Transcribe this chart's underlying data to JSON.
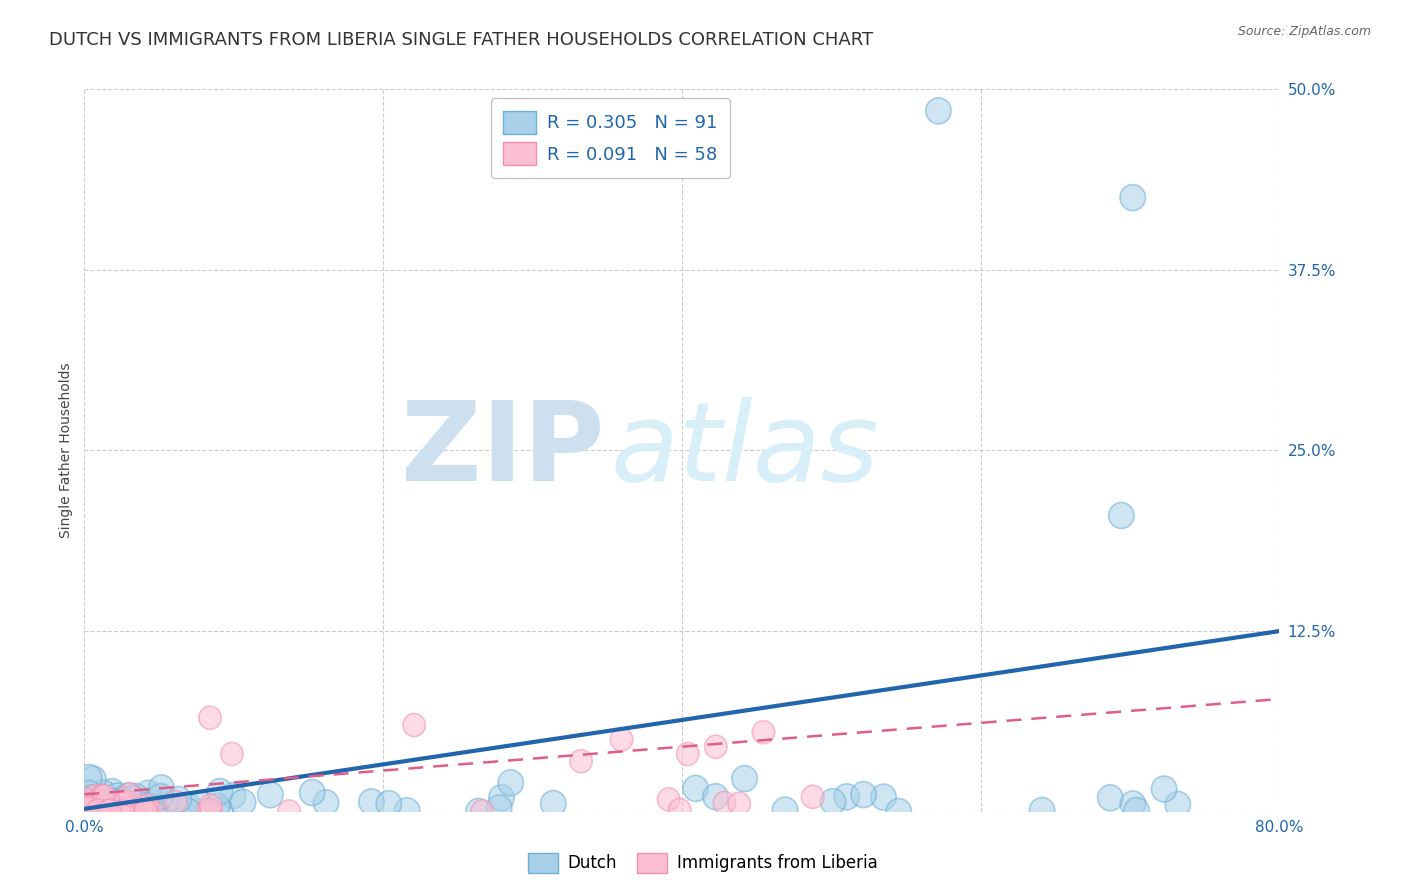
{
  "title": "DUTCH VS IMMIGRANTS FROM LIBERIA SINGLE FATHER HOUSEHOLDS CORRELATION CHART",
  "source": "Source: ZipAtlas.com",
  "ylabel": "Single Father Households",
  "xlim": [
    0.0,
    0.8
  ],
  "ylim": [
    0.0,
    0.5
  ],
  "xticks": [
    0.0,
    0.2,
    0.4,
    0.6,
    0.8
  ],
  "yticks": [
    0.0,
    0.125,
    0.25,
    0.375,
    0.5
  ],
  "ytick_labels": [
    "",
    "12.5%",
    "25.0%",
    "37.5%",
    "50.0%"
  ],
  "xtick_labels": [
    "0.0%",
    "",
    "",
    "",
    "80.0%"
  ],
  "dutch_R": 0.305,
  "dutch_N": 91,
  "liberia_R": 0.091,
  "liberia_N": 58,
  "dutch_color": "#a8d0e8",
  "dutch_edge_color": "#6baed6",
  "liberia_color": "#fbbfd2",
  "liberia_edge_color": "#f48fb1",
  "dutch_line_color": "#2166ac",
  "liberia_line_color": "#e05c8a",
  "background_color": "#ffffff",
  "grid_color": "#cccccc",
  "watermark_zip_color": "#cce0f0",
  "watermark_atlas_color": "#d8eef8",
  "title_fontsize": 13,
  "axis_label_fontsize": 10,
  "tick_fontsize": 11,
  "tick_color": "#2166ac",
  "legend_text_color": "#2166ac",
  "dutch_line_y_at_0": 0.002,
  "dutch_line_y_at_080": 0.125,
  "liberia_line_y_at_0": 0.012,
  "liberia_line_y_at_080": 0.078
}
